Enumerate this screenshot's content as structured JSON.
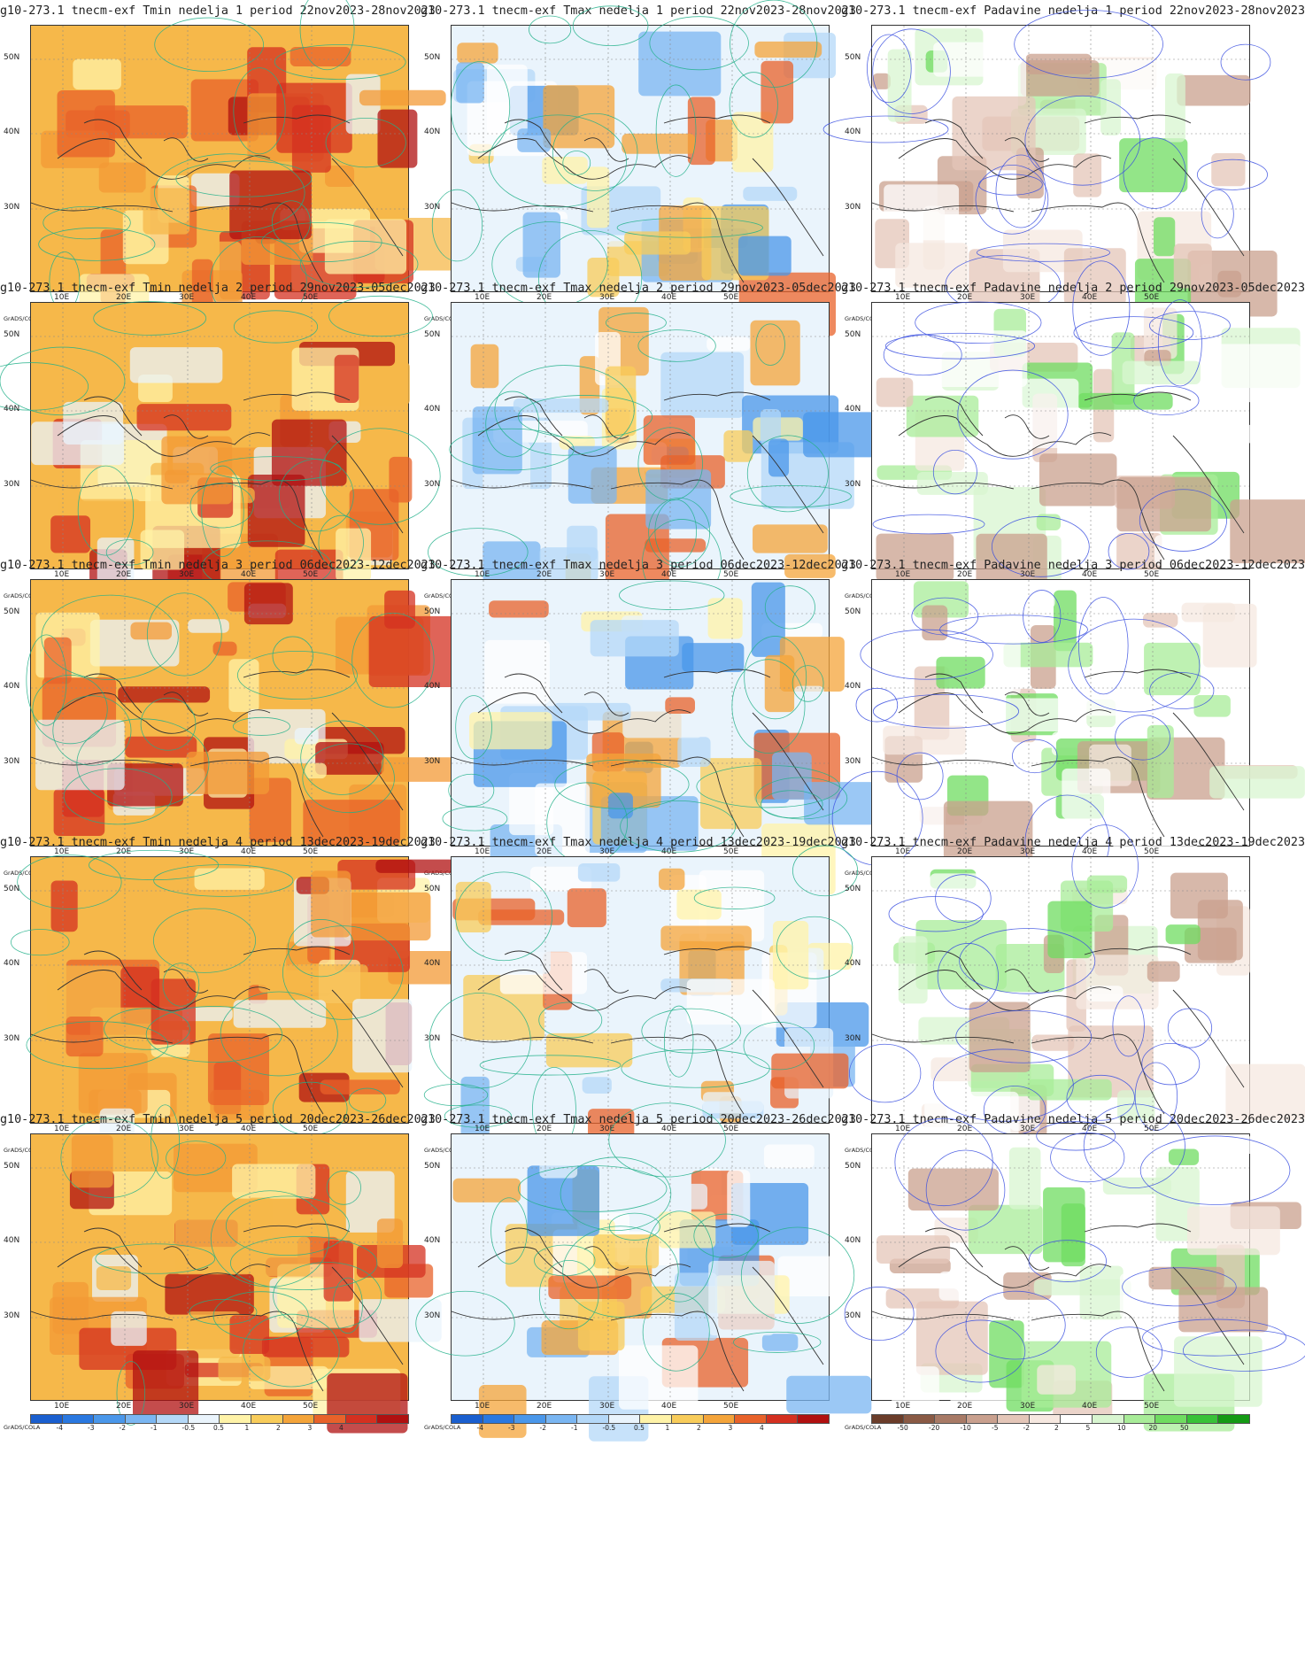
{
  "titles": {
    "tmin": [
      "g10-273.1 tnecm-exf Tmin nedelja 1 period 22nov2023-28nov2023",
      "g10-273.1 tnecm-exf Tmin nedelja 2 period 29nov2023-05dec2023",
      "g10-273.1 tnecm-exf Tmin nedelja 3 period 06dec2023-12dec2023",
      "g10-273.1 tnecm-exf Tmin nedelja 4 period 13dec2023-19dec2023",
      "g10-273.1 tnecm-exf Tmin nedelja 5 period 20dec2023-26dec2023"
    ],
    "tmax": [
      "g10-273.1 tnecm-exf Tmax nedelja 1 period 22nov2023-28nov2023",
      "g10-273.1 tnecm-exf Tmax nedelja 2 period 29nov2023-05dec2023",
      "g10-273.1 tnecm-exf Tmax nedelja 3 period 06dec2023-12dec2023",
      "g10-273.1 tnecm-exf Tmax nedelja 4 period 13dec2023-19dec2023",
      "g10-273.1 tnecm-exf Tmax nedelja 5 period 20dec2023-26dec2023"
    ],
    "padavine": [
      "g10-273.1 tnecm-exf Padavine nedelja 1 period 22nov2023-28nov2023",
      "g10-273.1 tnecm-exf Padavine nedelja 2 period 29nov2023-05dec2023",
      "g10-273.1 tnecm-exf Padavine nedelja 3 period 06dec2023-12dec2023",
      "g10-273.1 tnecm-exf Padavine nedelja 4 period 13dec2023-19dec2023",
      "g10-273.1 tnecm-exf Padavine nedelja 5 period 20dec2023-26dec2023"
    ]
  },
  "axes": {
    "lat_labels": [
      "50N",
      "40N",
      "30N"
    ],
    "lon_labels": [
      "10E",
      "20E",
      "30E",
      "40E",
      "50E"
    ]
  },
  "colorbar": {
    "credit": "GrADS/COLA",
    "temp_ticks": [
      "-4",
      "-3",
      "-2",
      "-1",
      "-0.5",
      "0.5",
      "1",
      "2",
      "3",
      "4"
    ],
    "temp_colors": [
      "#1a5fcf",
      "#2a78e0",
      "#4a97ea",
      "#7ab6f2",
      "#b4d8f8",
      "#eaf4fc",
      "#fff3a8",
      "#f8cc5a",
      "#f4a43a",
      "#e8622a",
      "#d43020",
      "#b01010"
    ],
    "precip_ticks": [
      "-50",
      "-20",
      "-10",
      "-5",
      "-2",
      "2",
      "5",
      "10",
      "20",
      "50"
    ],
    "precip_colors": [
      "#6b3d2a",
      "#8a5a45",
      "#a87a66",
      "#c9a08e",
      "#e4c6b8",
      "#f6e8e0",
      "#ffffff",
      "#d8f5d0",
      "#a8ec98",
      "#6fdc60",
      "#38c238",
      "#149a14"
    ]
  }
}
